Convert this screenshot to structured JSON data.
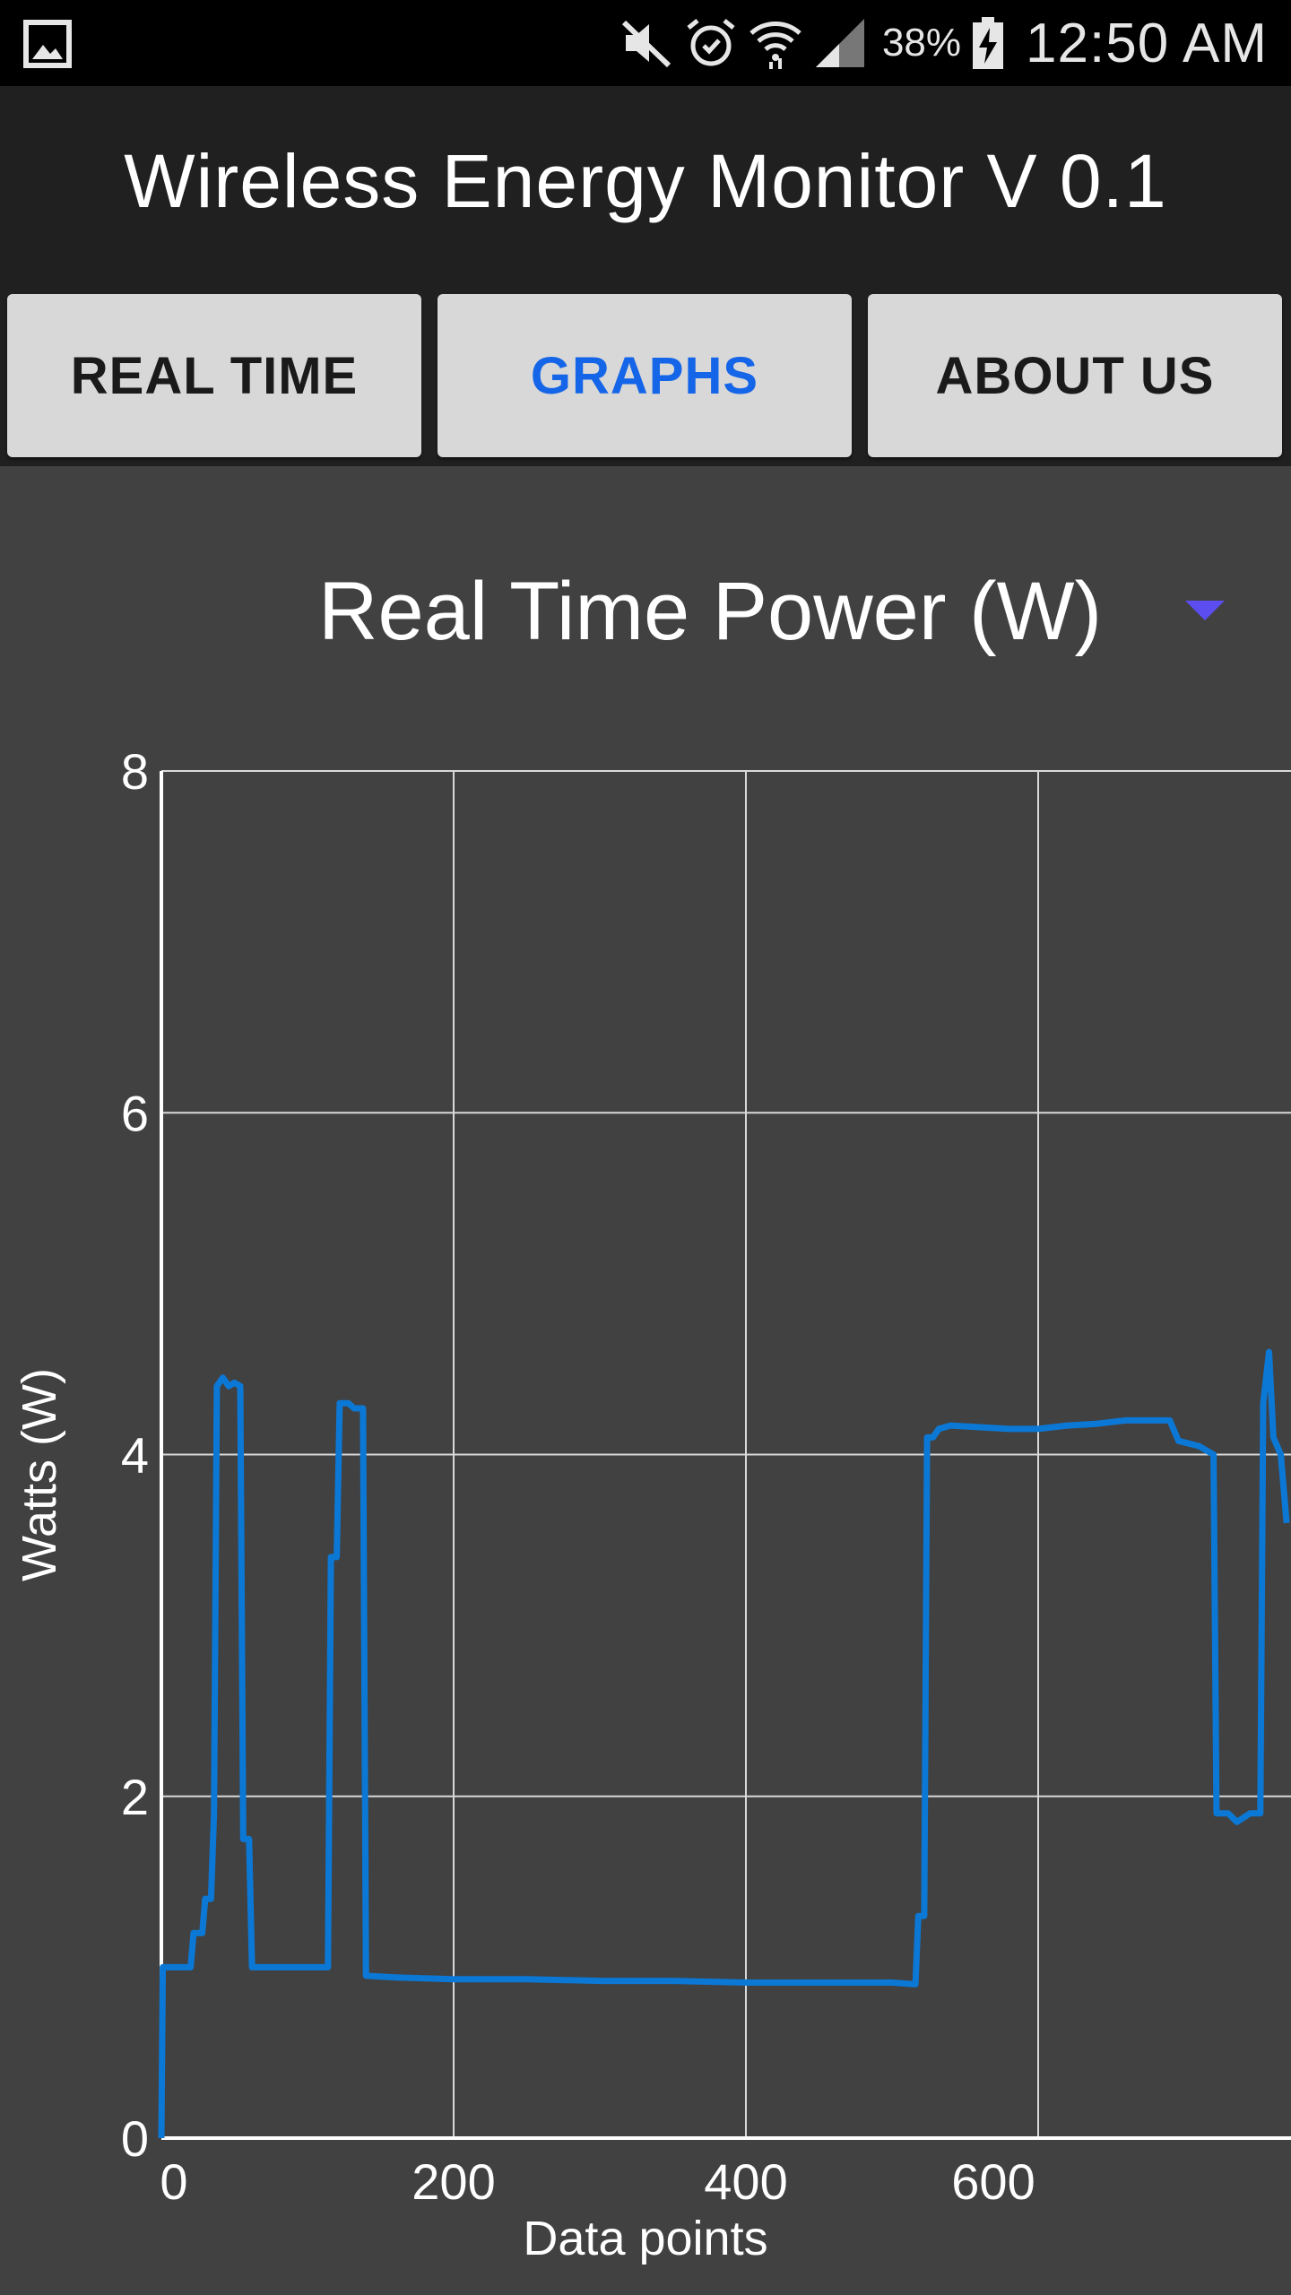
{
  "status_bar": {
    "battery_percent": "38%",
    "time": "12:50 AM",
    "icons": [
      "gallery-icon",
      "mute-icon",
      "alarm-icon",
      "wifi-icon",
      "signal-icon",
      "battery-charging-icon"
    ]
  },
  "app": {
    "title": "Wireless Energy Monitor V 0.1"
  },
  "nav": {
    "tabs": [
      {
        "label": "REAL TIME",
        "active": false
      },
      {
        "label": "GRAPHS",
        "active": true
      },
      {
        "label": "ABOUT US",
        "active": false
      }
    ]
  },
  "graph_selector": {
    "selected": "Real Time Power (W)"
  },
  "colors": {
    "accent_blue": "#1565e8",
    "series_line": "#0b78d6",
    "dropdown_arrow": "#5b4df0",
    "chart_background": "#414141"
  },
  "chart_data": {
    "type": "line",
    "title": "",
    "xlabel": "Data points",
    "ylabel": "Watts (W)",
    "xlim": [
      0,
      770
    ],
    "ylim": [
      0,
      8
    ],
    "x_ticks": [
      "0",
      "200",
      "400",
      "600"
    ],
    "y_ticks": [
      "0",
      "2",
      "4",
      "6",
      "8"
    ],
    "grid": true,
    "series": [
      {
        "name": "",
        "points": [
          [
            0,
            0
          ],
          [
            1,
            1.0
          ],
          [
            10,
            1.0
          ],
          [
            20,
            1.0
          ],
          [
            22,
            1.2
          ],
          [
            28,
            1.2
          ],
          [
            30,
            1.4
          ],
          [
            34,
            1.4
          ],
          [
            36,
            1.9
          ],
          [
            38,
            4.4
          ],
          [
            42,
            4.45
          ],
          [
            46,
            4.4
          ],
          [
            50,
            4.42
          ],
          [
            54,
            4.4
          ],
          [
            56,
            1.75
          ],
          [
            60,
            1.75
          ],
          [
            62,
            1.0
          ],
          [
            80,
            1.0
          ],
          [
            95,
            1.0
          ],
          [
            110,
            1.0
          ],
          [
            114,
            1.0
          ],
          [
            116,
            3.4
          ],
          [
            120,
            3.4
          ],
          [
            122,
            4.3
          ],
          [
            128,
            4.3
          ],
          [
            132,
            4.27
          ],
          [
            138,
            4.27
          ],
          [
            140,
            0.95
          ],
          [
            160,
            0.94
          ],
          [
            200,
            0.93
          ],
          [
            250,
            0.93
          ],
          [
            300,
            0.92
          ],
          [
            350,
            0.92
          ],
          [
            400,
            0.91
          ],
          [
            450,
            0.91
          ],
          [
            500,
            0.91
          ],
          [
            516,
            0.9
          ],
          [
            518,
            1.3
          ],
          [
            522,
            1.3
          ],
          [
            524,
            4.1
          ],
          [
            528,
            4.1
          ],
          [
            532,
            4.15
          ],
          [
            540,
            4.17
          ],
          [
            560,
            4.16
          ],
          [
            580,
            4.15
          ],
          [
            600,
            4.15
          ],
          [
            620,
            4.17
          ],
          [
            640,
            4.18
          ],
          [
            660,
            4.2
          ],
          [
            680,
            4.2
          ],
          [
            690,
            4.2
          ],
          [
            696,
            4.08
          ],
          [
            710,
            4.05
          ],
          [
            720,
            4.0
          ],
          [
            722,
            1.9
          ],
          [
            730,
            1.9
          ],
          [
            736,
            1.85
          ],
          [
            745,
            1.9
          ],
          [
            752,
            1.9
          ],
          [
            754,
            4.3
          ],
          [
            758,
            4.6
          ],
          [
            761,
            4.1
          ],
          [
            766,
            4.0
          ],
          [
            770,
            3.6
          ]
        ]
      }
    ]
  }
}
